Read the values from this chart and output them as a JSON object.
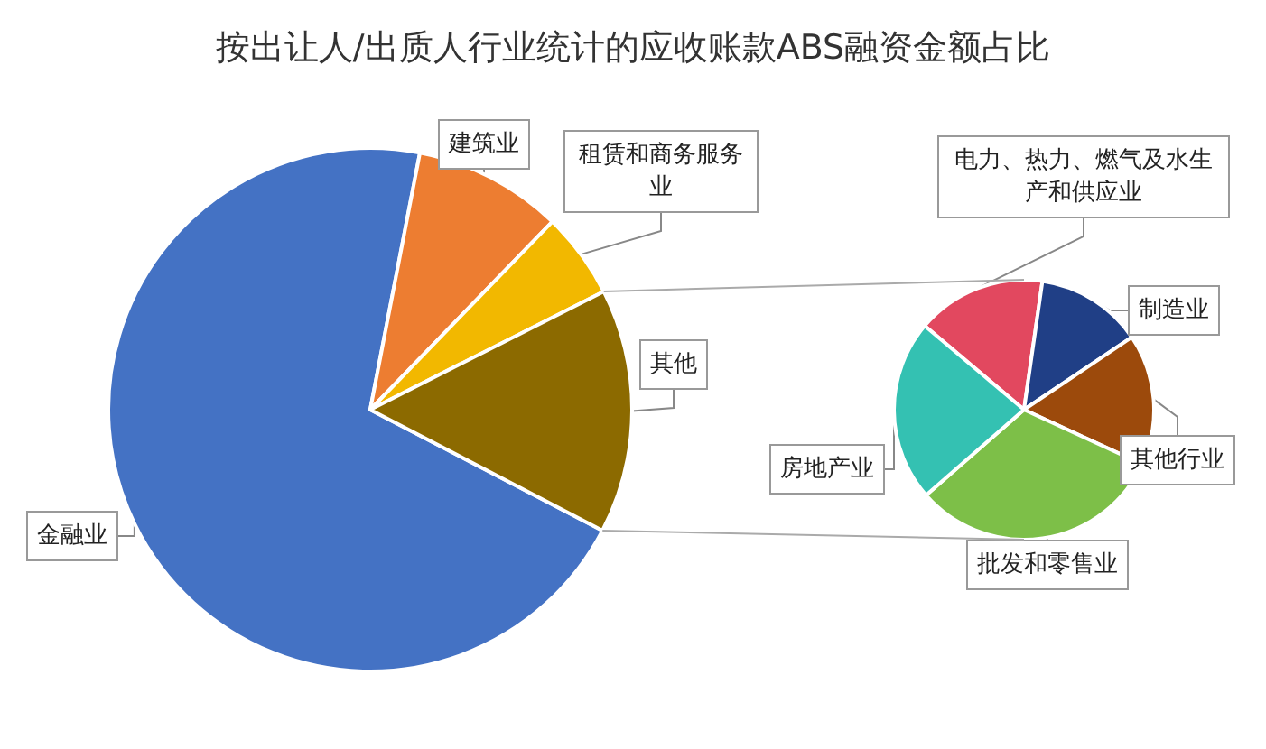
{
  "chart_data": [
    {
      "type": "pie",
      "title": "按出让人/出质人行业统计的应收账款ABS融资金额占比",
      "categories": [
        "金融业",
        "建筑业",
        "租赁和商务服务业",
        "其他"
      ],
      "values": [
        70.4,
        9.2,
        5.3,
        15.1
      ],
      "colors": [
        "#4472c4",
        "#ed7d31",
        "#f2b800",
        "#8c6a00"
      ]
    },
    {
      "type": "pie",
      "categories": [
        "电力、热力、燃气及水生产和供应业",
        "制造业",
        "其他行业",
        "批发和零售业",
        "房地产业"
      ],
      "values": [
        16.1,
        13.3,
        16.3,
        31.7,
        22.6
      ],
      "colors": [
        "#e2485f",
        "#203f86",
        "#9c4a0c",
        "#7dbf48",
        "#34c1b2"
      ]
    }
  ]
}
